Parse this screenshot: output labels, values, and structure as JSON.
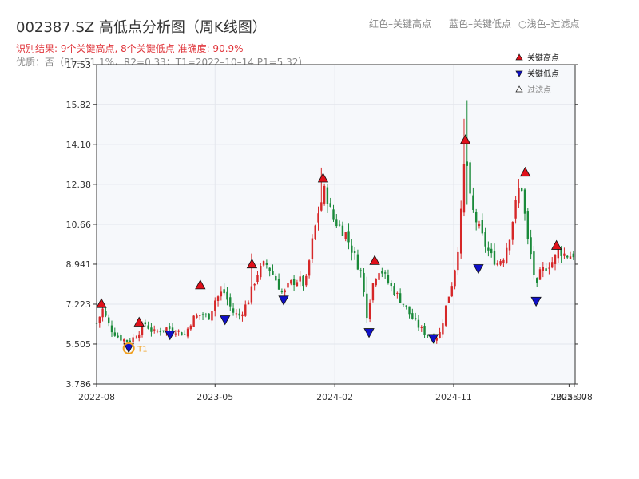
{
  "header": {
    "title": "002387.SZ 高低点分析图（周K线图）",
    "legend_red": "红色–关键高点",
    "legend_blue": "蓝色–关键低点",
    "legend_light": "○浅色–过滤点",
    "result_line": "识别结果: 9个关键高点, 8个关键低点  准确度: 90.9%",
    "quality_line": "优质：否（P1=51.1%，R2=0.33；T1=2022–10–14 P1=5.32）"
  },
  "chart_data": {
    "type": "candlestick",
    "ylim": [
      3.786,
      17.53
    ],
    "y_ticks": [
      "3.786",
      "5.505",
      "7.223",
      "8.941",
      "10.66",
      "12.38",
      "14.10",
      "15.82",
      "17.53"
    ],
    "x_ticks": [
      "2022-08",
      "2023-05",
      "2024-02",
      "2024-11",
      "2025-07",
      "2025-08"
    ],
    "x_range": [
      "2022-08-01",
      "2025-08-08"
    ],
    "legend": {
      "high": "关键高点",
      "low": "关键低点",
      "filtered": "过滤点",
      "placement": "top-right"
    },
    "colors": {
      "up": "#d62728",
      "down": "#1a8a3a",
      "high_marker": "#e0101a",
      "low_marker": "#1010c8",
      "t1": "#f0a020"
    },
    "close_path": [
      [
        "2022-08-01",
        6.4
      ],
      [
        "2022-08-15",
        7.0
      ],
      [
        "2022-09-01",
        6.2
      ],
      [
        "2022-09-20",
        5.8
      ],
      [
        "2022-10-14",
        5.6
      ],
      [
        "2022-11-01",
        5.9
      ],
      [
        "2022-11-20",
        6.4
      ],
      [
        "2022-12-10",
        6.0
      ],
      [
        "2023-01-10",
        6.2
      ],
      [
        "2023-02-01",
        6.1
      ],
      [
        "2023-02-20",
        5.9
      ],
      [
        "2023-03-10",
        6.6
      ],
      [
        "2023-04-01",
        6.8
      ],
      [
        "2023-04-15",
        6.6
      ],
      [
        "2023-05-01",
        7.4
      ],
      [
        "2023-05-20",
        7.8
      ],
      [
        "2023-06-10",
        6.9
      ],
      [
        "2023-06-25",
        6.7
      ],
      [
        "2023-07-15",
        7.3
      ],
      [
        "2023-08-05",
        8.5
      ],
      [
        "2023-08-25",
        9.0
      ],
      [
        "2023-09-15",
        8.4
      ],
      [
        "2023-10-05",
        7.6
      ],
      [
        "2023-10-20",
        8.1
      ],
      [
        "2023-11-10",
        8.3
      ],
      [
        "2023-11-25",
        8.0
      ],
      [
        "2023-12-10",
        9.8
      ],
      [
        "2023-12-25",
        11.2
      ],
      [
        "2024-01-10",
        12.2
      ],
      [
        "2024-01-25",
        11.0
      ],
      [
        "2024-02-10",
        10.6
      ],
      [
        "2024-02-25",
        10.3
      ],
      [
        "2024-03-15",
        9.4
      ],
      [
        "2024-04-01",
        8.6
      ],
      [
        "2024-04-15",
        6.8
      ],
      [
        "2024-05-01",
        8.3
      ],
      [
        "2024-05-15",
        8.8
      ],
      [
        "2024-06-01",
        8.2
      ],
      [
        "2024-06-20",
        7.7
      ],
      [
        "2024-07-10",
        7.2
      ],
      [
        "2024-08-01",
        6.5
      ],
      [
        "2024-08-25",
        6.0
      ],
      [
        "2024-09-15",
        5.7
      ],
      [
        "2024-10-01",
        6.0
      ],
      [
        "2024-10-15",
        7.2
      ],
      [
        "2024-11-01",
        8.4
      ],
      [
        "2024-11-15",
        10.2
      ],
      [
        "2024-11-28",
        14.0
      ],
      [
        "2024-12-10",
        11.5
      ],
      [
        "2024-12-25",
        10.7
      ],
      [
        "2025-01-10",
        9.9
      ],
      [
        "2025-01-25",
        9.3
      ],
      [
        "2025-02-10",
        9.0
      ],
      [
        "2025-02-25",
        9.3
      ],
      [
        "2025-03-10",
        10.2
      ],
      [
        "2025-03-25",
        11.6
      ],
      [
        "2025-04-05",
        12.6
      ],
      [
        "2025-04-20",
        10.0
      ],
      [
        "2025-05-01",
        9.1
      ],
      [
        "2025-05-10",
        7.8
      ],
      [
        "2025-05-20",
        8.6
      ],
      [
        "2025-06-05",
        8.9
      ],
      [
        "2025-06-20",
        9.1
      ],
      [
        "2025-07-01",
        9.6
      ],
      [
        "2025-07-10",
        9.4
      ],
      [
        "2025-07-25",
        9.3
      ],
      [
        "2025-08-08",
        9.4
      ]
    ],
    "spikes": [
      [
        "2023-07-25",
        8.2,
        9.4
      ],
      [
        "2024-01-02",
        11.5,
        13.1
      ],
      [
        "2024-11-28",
        11.0,
        15.2
      ],
      [
        "2024-12-05",
        11.5,
        16.0
      ],
      [
        "2024-04-12",
        6.4,
        8.4
      ]
    ],
    "key_highs": [
      [
        "2022-08-12",
        7.25
      ],
      [
        "2022-11-07",
        6.45
      ],
      [
        "2023-03-28",
        8.05
      ],
      [
        "2023-07-25",
        8.95
      ],
      [
        "2024-01-05",
        12.65
      ],
      [
        "2024-05-03",
        9.1
      ],
      [
        "2024-11-28",
        14.3
      ],
      [
        "2025-04-15",
        12.9
      ],
      [
        "2025-06-26",
        9.75
      ]
    ],
    "key_lows": [
      [
        "2022-10-14",
        5.35
      ],
      [
        "2023-01-17",
        5.9
      ],
      [
        "2023-05-24",
        6.55
      ],
      [
        "2023-10-06",
        7.4
      ],
      [
        "2024-04-20",
        6.0
      ],
      [
        "2024-09-15",
        5.75
      ],
      [
        "2024-12-28",
        8.75
      ],
      [
        "2025-05-10",
        7.35
      ]
    ],
    "t1": {
      "date": "2022-10-14",
      "value": 5.32,
      "label": "T1"
    }
  }
}
